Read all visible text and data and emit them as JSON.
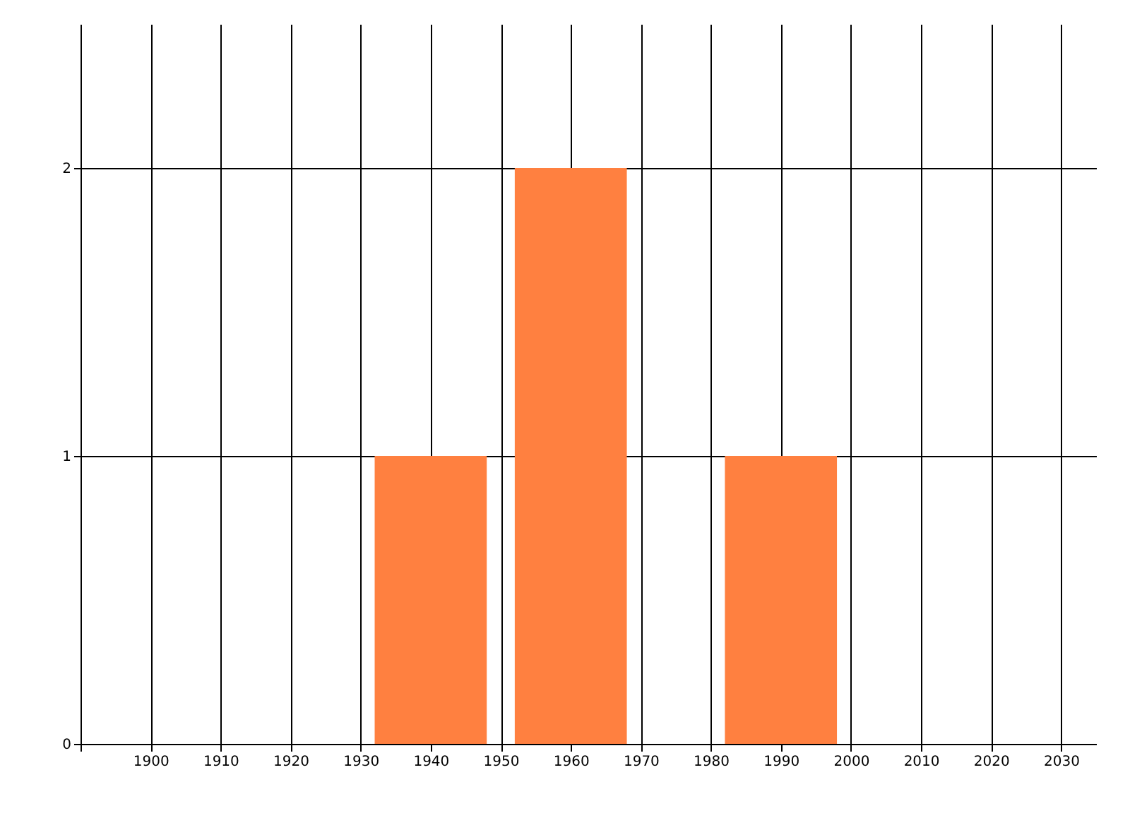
{
  "chart_data": {
    "type": "bar",
    "x": [
      1940,
      1960,
      1990
    ],
    "values": [
      1,
      2,
      1
    ],
    "color": "#ff8040",
    "xlim": [
      1890,
      2035
    ],
    "xticks": [
      {
        "value": 1890,
        "label": null
      },
      1900,
      1910,
      1920,
      1930,
      1940,
      1950,
      1960,
      1970,
      1980,
      1990,
      2000,
      2010,
      2020,
      2030
    ],
    "ylim": [
      0,
      2.5
    ],
    "yticks": [
      0,
      1,
      2
    ],
    "grid": true
  }
}
